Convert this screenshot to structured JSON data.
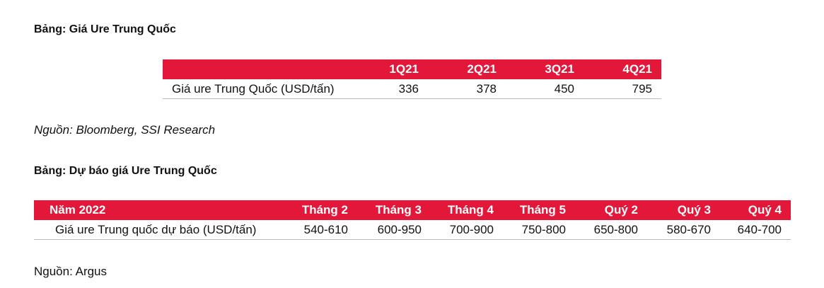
{
  "table1": {
    "title": "Bảng: Giá Ure Trung Quốc",
    "columns": [
      "1Q21",
      "2Q21",
      "3Q21",
      "4Q21"
    ],
    "row": {
      "label": "Giá ure Trung Quốc (USD/tấn)",
      "values": [
        336,
        378,
        450,
        795
      ]
    },
    "source": "Nguồn: Bloomberg, SSI Research"
  },
  "table2": {
    "title": "Bảng: Dự báo giá Ure Trung Quốc",
    "header_label": "Năm 2022",
    "columns": [
      "Tháng 2",
      "Tháng 3",
      "Tháng 4",
      "Tháng 5",
      "Quý 2",
      "Quý 3",
      "Quý 4"
    ],
    "row": {
      "label": "Giá ure Trung quốc dự báo (USD/tấn)",
      "values": [
        "540-610",
        "600-950",
        "700-900",
        "750-800",
        "650-800",
        "580-670",
        "640-700"
      ]
    },
    "source": "Nguồn: Argus"
  }
}
